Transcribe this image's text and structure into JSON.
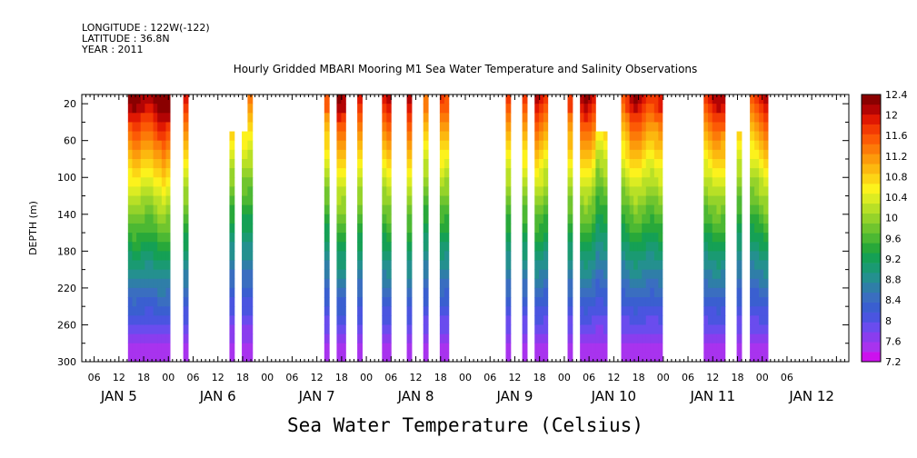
{
  "header": {
    "longitude": "LONGITUDE : 122W(-122)",
    "latitude": "LATITUDE : 36.8N",
    "year": "YEAR : 2011"
  },
  "chart_data": {
    "type": "heatmap",
    "title": "Hourly Gridded MBARI Mooring M1 Sea Water Temperature and Salinity Observations",
    "xlabel": "Sea Water Temperature (Celsius)",
    "ylabel": "DEPTH (m)",
    "ylim": [
      300,
      0
    ],
    "y_ticks": [
      20,
      60,
      100,
      140,
      180,
      220,
      260,
      300
    ],
    "x_start_hour": 3,
    "x_end_hour": 189,
    "x_hour_tick_labels": [
      "06",
      "12",
      "18",
      "00",
      "06",
      "12",
      "18",
      "00",
      "06",
      "12",
      "18",
      "00",
      "06",
      "12",
      "18",
      "00",
      "06",
      "12",
      "18",
      "00",
      "06",
      "12",
      "18",
      "00",
      "06",
      "12",
      "18",
      "00",
      "06"
    ],
    "x_day_labels": [
      {
        "label": "JAN  5",
        "hour": 12
      },
      {
        "label": "JAN  6",
        "hour": 36
      },
      {
        "label": "JAN  7",
        "hour": 60
      },
      {
        "label": "JAN  8",
        "hour": 84
      },
      {
        "label": "JAN  9",
        "hour": 108
      },
      {
        "label": "JAN 10",
        "hour": 132
      },
      {
        "label": "JAN 11",
        "hour": 156
      },
      {
        "label": "JAN 12",
        "hour": 180
      }
    ],
    "colorbar": {
      "levels": [
        7.2,
        7.4,
        7.6,
        7.8,
        8,
        8.2,
        8.4,
        8.6,
        8.8,
        9,
        9.2,
        9.4,
        9.6,
        9.8,
        10,
        10.2,
        10.4,
        10.6,
        10.8,
        11,
        11.2,
        11.4,
        11.6,
        11.8,
        12,
        12.2,
        12.4
      ],
      "tick_labels": [
        "12.4",
        "12",
        "11.6",
        "11.2",
        "10.8",
        "10.4",
        "10",
        "9.6",
        "9.2",
        "8.8",
        "8.4",
        "8",
        "7.6",
        "7.2"
      ],
      "colors": [
        "#cc11ee",
        "#a833ee",
        "#8a3dee",
        "#6a4cee",
        "#4a55e0",
        "#3a5fd0",
        "#3a6ec0",
        "#2f7ea8",
        "#24908f",
        "#1a9a72",
        "#15a055",
        "#28a83a",
        "#4cb833",
        "#70c52e",
        "#95d32a",
        "#b8e026",
        "#dcec22",
        "#fcf21c",
        "#fcd515",
        "#fcb80f",
        "#fc9a0b",
        "#fc7a08",
        "#fc5a05",
        "#f33a03",
        "#e01802",
        "#b30404",
        "#8a0000"
      ]
    },
    "segments": [
      {
        "start": 14.2,
        "end": 24.4,
        "top_depth": 20,
        "surface_temp": 12.4
      },
      {
        "start": 27.6,
        "end": 28.8,
        "top_depth": 20,
        "surface_temp": 12.0
      },
      {
        "start": 38.8,
        "end": 40.0,
        "top_depth": 60,
        "surface_temp": 11.6
      },
      {
        "start": 41.8,
        "end": 43.2,
        "top_depth": 60,
        "surface_temp": 11.6
      },
      {
        "start": 43.2,
        "end": 44.4,
        "top_depth": 20,
        "surface_temp": 11.8
      },
      {
        "start": 61.8,
        "end": 63.0,
        "top_depth": 20,
        "surface_temp": 12.0
      },
      {
        "start": 64.8,
        "end": 67.0,
        "top_depth": 20,
        "surface_temp": 12.0
      },
      {
        "start": 69.8,
        "end": 71.0,
        "top_depth": 20,
        "surface_temp": 12.0
      },
      {
        "start": 75.8,
        "end": 78.0,
        "top_depth": 20,
        "surface_temp": 12.0
      },
      {
        "start": 81.8,
        "end": 83.0,
        "top_depth": 20,
        "surface_temp": 12.0
      },
      {
        "start": 85.8,
        "end": 87.0,
        "top_depth": 20,
        "surface_temp": 12.0
      },
      {
        "start": 89.8,
        "end": 92.0,
        "top_depth": 20,
        "surface_temp": 12.0
      },
      {
        "start": 105.8,
        "end": 107.0,
        "top_depth": 20,
        "surface_temp": 12.0
      },
      {
        "start": 109.8,
        "end": 111.0,
        "top_depth": 20,
        "surface_temp": 12.0
      },
      {
        "start": 112.8,
        "end": 116.0,
        "top_depth": 20,
        "surface_temp": 12.0
      },
      {
        "start": 120.8,
        "end": 122.0,
        "top_depth": 20,
        "surface_temp": 12.0
      },
      {
        "start": 123.8,
        "end": 127.6,
        "top_depth": 20,
        "surface_temp": 12.0
      },
      {
        "start": 127.6,
        "end": 130.4,
        "top_depth": 60,
        "surface_temp": 11.6
      },
      {
        "start": 133.8,
        "end": 143.8,
        "top_depth": 20,
        "surface_temp": 12.0
      },
      {
        "start": 153.8,
        "end": 159.0,
        "top_depth": 20,
        "surface_temp": 12.0
      },
      {
        "start": 161.8,
        "end": 163.0,
        "top_depth": 60,
        "surface_temp": 11.6
      },
      {
        "start": 165.0,
        "end": 169.4,
        "top_depth": 20,
        "surface_temp": 12.0
      }
    ]
  }
}
